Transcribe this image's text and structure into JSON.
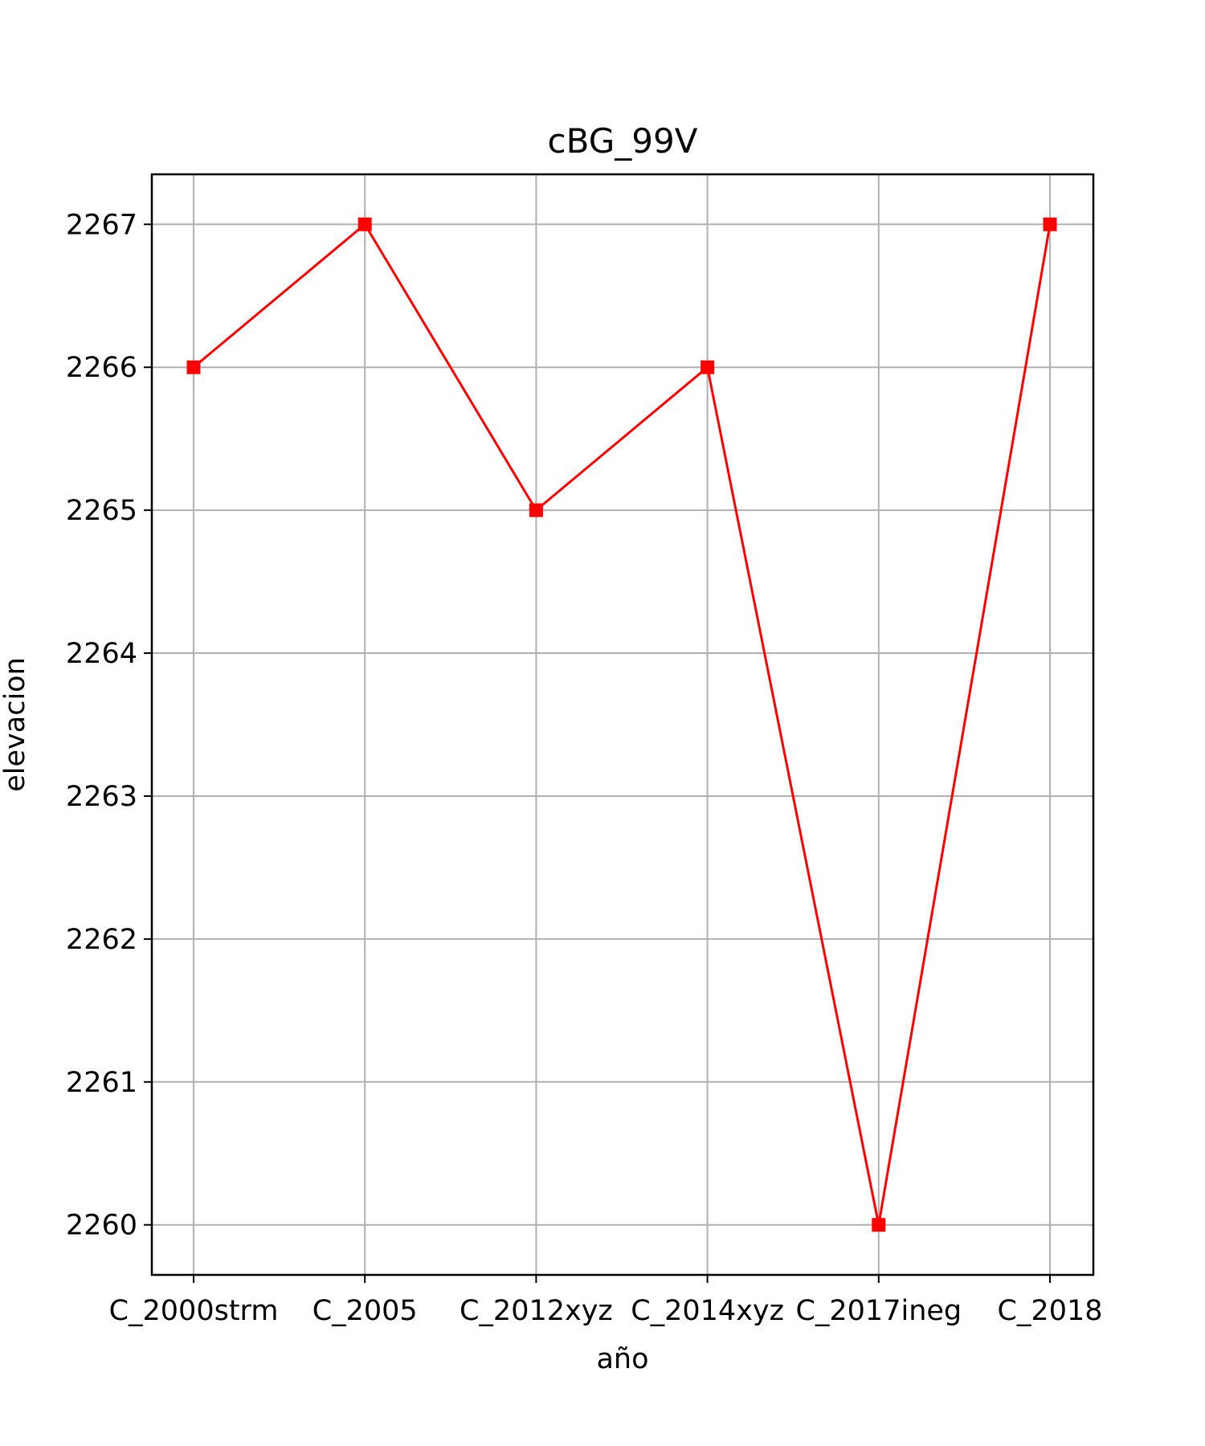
{
  "chart_data": {
    "type": "line",
    "title": "cBG_99V",
    "xlabel": "año",
    "ylabel": "elevacion",
    "categories": [
      "C_2000strm",
      "C_2005",
      "C_2012xyz",
      "C_2014xyz",
      "C_2017ineg",
      "C_2018"
    ],
    "series": [
      {
        "values": [
          2266,
          2267,
          2265,
          2266,
          2260,
          2267
        ],
        "color": "#ff0000",
        "marker": "square"
      }
    ],
    "ylim": [
      2259.65,
      2267.35
    ],
    "yticks": [
      2260,
      2261,
      2262,
      2263,
      2264,
      2265,
      2266,
      2267
    ],
    "grid": true,
    "legend": "none"
  }
}
